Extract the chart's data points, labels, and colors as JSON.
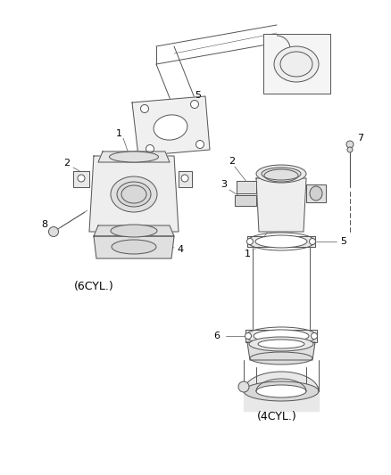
{
  "bg_color": "#ffffff",
  "line_color": "#555555",
  "label_color": "#000000",
  "label_6cyl": "(6CYL.)",
  "label_4cyl": "(4CYL.)",
  "figsize": [
    4.38,
    5.33
  ],
  "dpi": 100
}
